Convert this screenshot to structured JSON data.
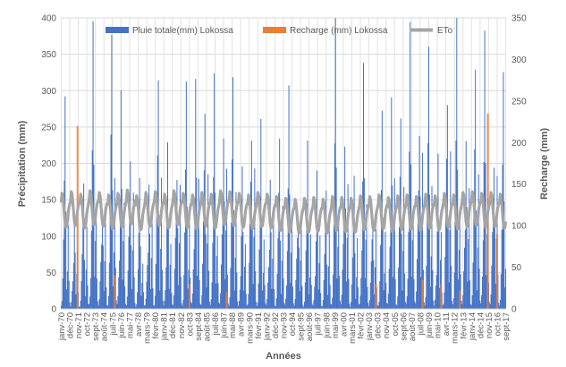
{
  "chart_data": {
    "type": "bar",
    "title": "",
    "xlabel": "Années",
    "ylabel_left": "Précipitation (mm)",
    "ylabel_right": "Recharge (mm)",
    "ylim_left": [
      0,
      400
    ],
    "ylim_right": [
      0,
      350
    ],
    "yticks_left": [
      0,
      50,
      100,
      150,
      200,
      250,
      300,
      350,
      400
    ],
    "yticks_right": [
      0,
      50,
      100,
      150,
      200,
      250,
      300,
      350
    ],
    "grid": true,
    "legend_position": "top",
    "x_tick_labels": [
      "janv-70",
      "déc-70",
      "nov-71",
      "oct-72",
      "sept-73",
      "août-74",
      "juil-75",
      "juin-76",
      "mai-77",
      "avr-78",
      "mars-79",
      "févr-80",
      "janv-81",
      "déc-81",
      "nov-82",
      "oct-83",
      "sept-84",
      "août-85",
      "juil-86",
      "juin-87",
      "mai-88",
      "avr-89",
      "mars-90",
      "févr-91",
      "janv-92",
      "déc-92",
      "nov-93",
      "oct-94",
      "sept-95",
      "août-96",
      "juil-97",
      "juin-98",
      "mai-99",
      "avr-00",
      "mars-01",
      "févr-02",
      "janv-03",
      "déc-03",
      "nov-04",
      "oct-05",
      "sept-06",
      "août-07",
      "juil-08",
      "juin-09",
      "mai-10",
      "avr-11",
      "mars-12",
      "févr-13",
      "janv-14",
      "déc-14",
      "nov-15",
      "oct-16",
      "sept-17"
    ],
    "series": [
      {
        "name": "Pluie totale(mm) Lokossa",
        "axis": "left",
        "kind": "bar",
        "color": "#4472c4",
        "annual_peaks": [
          296,
          165,
          215,
          400,
          219,
          400,
          335,
          293,
          180,
          233,
          362,
          238,
          310,
          320,
          378,
          348,
          325,
          360,
          345,
          213,
          352,
          262,
          232,
          278,
          315,
          225,
          240,
          220,
          220,
          400,
          325,
          203,
          360,
          200,
          275,
          365,
          322,
          400,
          395,
          380,
          240,
          398,
          400,
          320,
          375,
          400,
          332
        ],
        "wet_season_floor": 25,
        "dry_season_floor": 2
      },
      {
        "name": "Recharge (mm) Lokossa",
        "axis": "right",
        "kind": "bar",
        "color": "#ed7d31",
        "events": [
          {
            "date": "1971-10",
            "value": 220
          },
          {
            "date": "1975-10",
            "value": 40
          },
          {
            "date": "1983-10",
            "value": 30
          },
          {
            "date": "1987-10",
            "value": 20
          },
          {
            "date": "2003-10",
            "value": 30
          },
          {
            "date": "2008-10",
            "value": 35
          },
          {
            "date": "2010-10",
            "value": 30
          },
          {
            "date": "2012-10",
            "value": 22
          },
          {
            "date": "2015-10",
            "value": 235
          },
          {
            "date": "2016-10",
            "value": 90
          }
        ]
      },
      {
        "name": "ETo",
        "axis": "right",
        "kind": "line",
        "color": "#a5a5a5",
        "monthly_mean": [
          128,
          139,
          136,
          126,
          114,
          103,
          98,
          99,
          106,
          116,
          122,
          126
        ],
        "annual_offset": [
          0,
          2,
          -1,
          3,
          1,
          -2,
          0,
          4,
          -3,
          1,
          2,
          -1,
          3,
          0,
          -2,
          1,
          -1,
          3,
          2,
          0,
          -2,
          1,
          -1,
          -4,
          -6,
          -7,
          -6,
          -5,
          -7,
          -4,
          -5,
          -6,
          -3,
          -4,
          -2,
          -5,
          -3,
          -2,
          -4,
          -1,
          -3,
          0,
          -2,
          1,
          2,
          0,
          1,
          -1
        ]
      }
    ]
  }
}
